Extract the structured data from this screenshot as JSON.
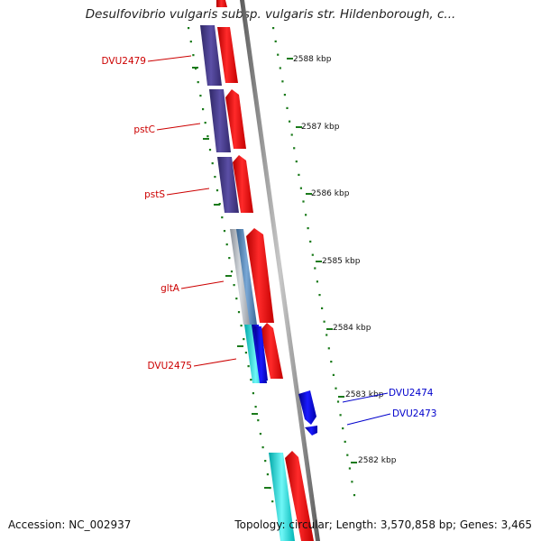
{
  "title": "Desulfovibrio vulgaris subsp. vulgaris str. Hildenborough, c...",
  "footer": {
    "accession": "Accession: NC_002937",
    "summary": "Topology: circular; Length: 3,570,858 bp; Genes: 3,465"
  },
  "ruler_labels": [
    "2588 kbp",
    "2587 kbp",
    "2586 kbp",
    "2585 kbp",
    "2584 kbp",
    "2583 kbp",
    "2582 kbp"
  ],
  "gene_labels": [
    "DVU2479",
    "pstC",
    "pstS",
    "gltA",
    "DVU2475",
    "DVU2474",
    "DVU2473"
  ],
  "colors": {
    "cds_forward": "#ff0000",
    "cds_reverse": "#0000ee",
    "cog_purple": "#4b3f8c",
    "cog_cyan": "#00d4d4",
    "cog_steel": "#4a7fb5",
    "cog_gray": "#aab0b8",
    "ruler_green": "#1a7a1a",
    "backbone": "#7a7a7a",
    "label_red": "#cc0000",
    "label_blue": "#0000cc"
  }
}
